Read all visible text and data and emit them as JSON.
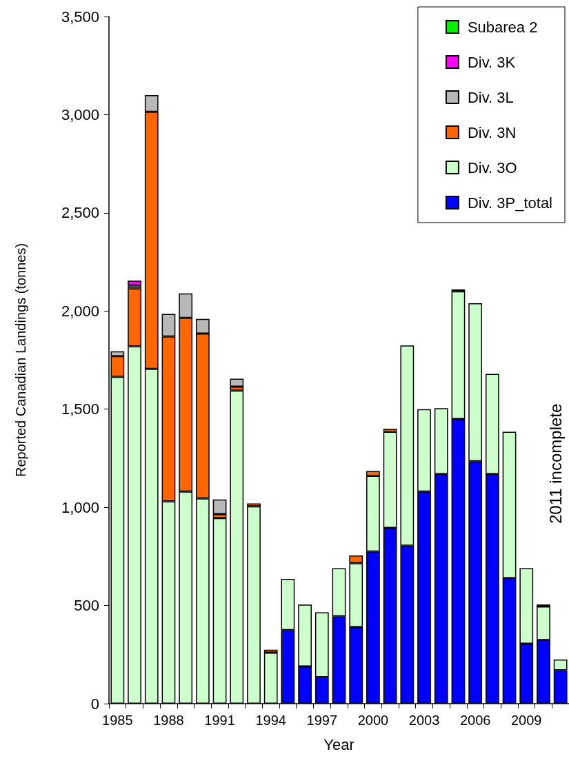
{
  "chart_data": {
    "type": "bar",
    "stacked": true,
    "xlabel": "Year",
    "ylabel": "Reported Canadian Landings (tonnes)",
    "categories": [
      "1985",
      null,
      null,
      "1988",
      null,
      null,
      "1991",
      null,
      null,
      "1994",
      null,
      null,
      "1997",
      null,
      null,
      "2000",
      null,
      null,
      "2003",
      null,
      null,
      "2006",
      null,
      null,
      "2009",
      null,
      null
    ],
    "series": [
      {
        "name": "Div. 3P_total",
        "color": "#0000ff",
        "values": [
          null,
          null,
          null,
          null,
          null,
          null,
          null,
          null,
          null,
          null,
          375,
          190,
          135,
          445,
          390,
          775,
          895,
          805,
          1080,
          1170,
          1450,
          1235,
          1170,
          640,
          305,
          325,
          170
        ]
      },
      {
        "name": "Div. 3O",
        "color": "#ccffcc",
        "values": [
          1665,
          1820,
          1705,
          1030,
          1080,
          1045,
          945,
          1595,
          1005,
          260,
          260,
          315,
          330,
          245,
          325,
          385,
          490,
          1020,
          420,
          335,
          650,
          805,
          510,
          745,
          385,
          170,
          55
        ]
      },
      {
        "name": "Div. 3N",
        "color": "#ff6600",
        "values": [
          105,
          295,
          1310,
          840,
          885,
          840,
          20,
          20,
          15,
          15,
          null,
          null,
          null,
          null,
          40,
          25,
          15,
          null,
          null,
          null,
          null,
          null,
          null,
          null,
          null,
          null,
          null
        ]
      },
      {
        "name": "Div. 3L",
        "color": "#b8b8b8",
        "values": [
          25,
          15,
          85,
          115,
          125,
          75,
          75,
          40,
          null,
          null,
          null,
          null,
          null,
          null,
          null,
          null,
          null,
          null,
          null,
          null,
          10,
          null,
          null,
          null,
          null,
          10,
          null
        ]
      },
      {
        "name": "Div. 3K",
        "color": "#ff00ff",
        "values": [
          null,
          25,
          null,
          null,
          null,
          null,
          null,
          null,
          null,
          null,
          null,
          null,
          null,
          null,
          null,
          null,
          null,
          null,
          null,
          null,
          null,
          null,
          null,
          null,
          null,
          null,
          null
        ]
      },
      {
        "name": "Subarea 2",
        "color": "#00ee00",
        "values": [
          null,
          null,
          null,
          null,
          null,
          null,
          null,
          null,
          null,
          null,
          null,
          null,
          null,
          null,
          null,
          null,
          null,
          null,
          null,
          null,
          null,
          null,
          null,
          null,
          null,
          null,
          null
        ]
      }
    ],
    "ylim": [
      0,
      3500
    ],
    "yticks": [
      {
        "value": 0,
        "label": "0"
      },
      {
        "value": 500,
        "label": "500"
      },
      {
        "value": 1000,
        "label": "1,000"
      },
      {
        "value": 1500,
        "label": "1,500"
      },
      {
        "value": 2000,
        "label": "2,000"
      },
      {
        "value": 2500,
        "label": "2,500"
      },
      {
        "value": 3000,
        "label": "3,000"
      },
      {
        "value": 3500,
        "label": "3,500"
      }
    ],
    "grid": false,
    "legend": "top right",
    "annotations": [
      "2011 incomplete"
    ]
  }
}
